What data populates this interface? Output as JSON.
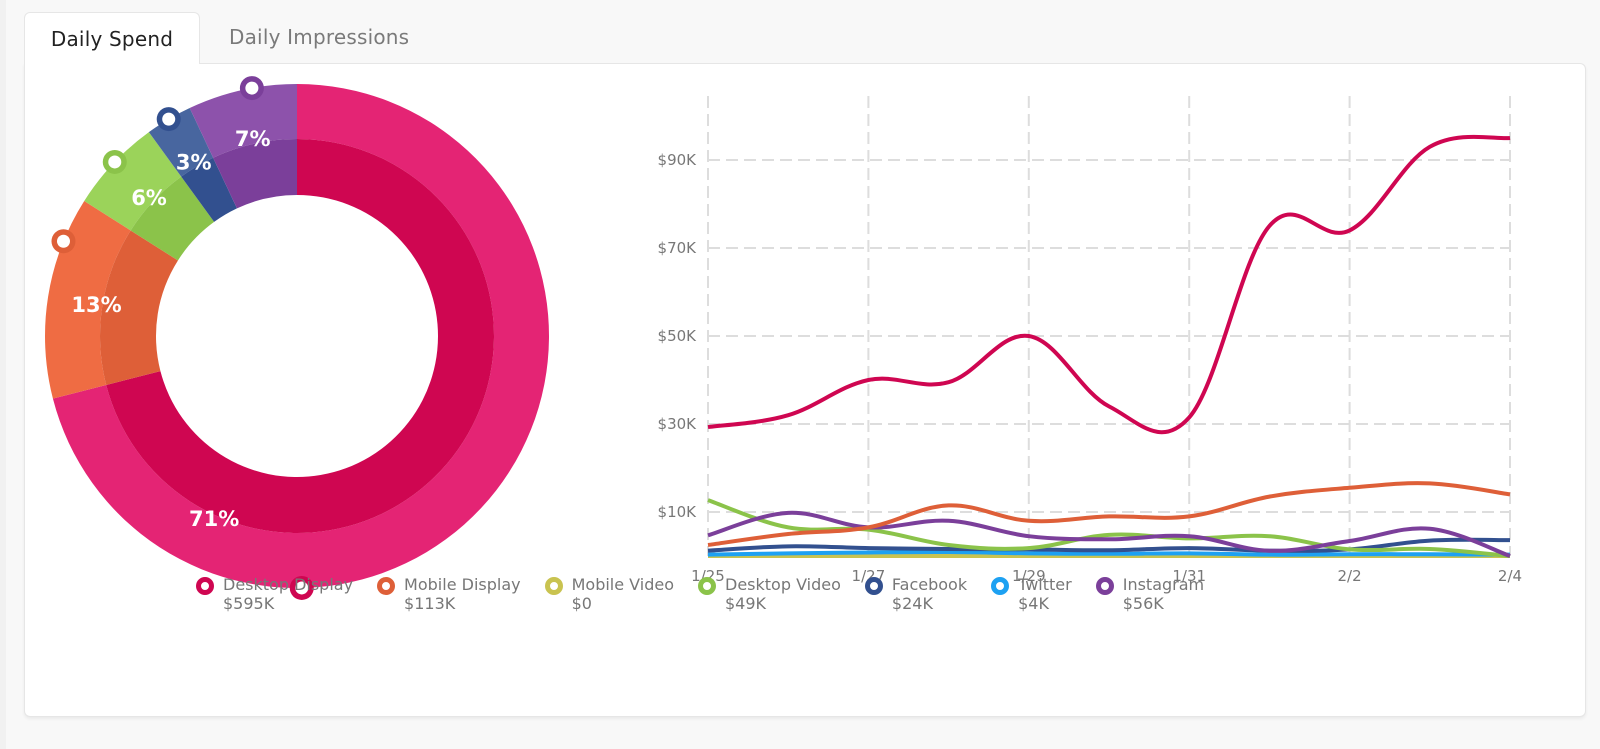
{
  "tabs": [
    {
      "label": "Daily Spend",
      "active": true
    },
    {
      "label": "Daily Impressions",
      "active": false
    }
  ],
  "colors": {
    "desktop_display": "#cf0651",
    "desktop_display_outer": "#e42474",
    "mobile_display": "#de5f38",
    "mobile_display_outer": "#ef6c43",
    "mobile_video": "#c9c350",
    "desktop_video": "#8bc34a",
    "desktop_video_outer": "#9bd35a",
    "facebook": "#32508f",
    "facebook_outer": "#48669f",
    "twitter": "#1da1f2",
    "instagram": "#7b3f9a",
    "instagram_outer": "#8d52ab",
    "grid": "#dddddd",
    "axis_text": "#777777"
  },
  "chart_data": [
    {
      "type": "pie",
      "variant": "donut",
      "title": "",
      "start_angle": "12 o'clock, clockwise",
      "slices": [
        {
          "name": "Desktop Display",
          "percent": 71,
          "label": "71%",
          "color_key": "desktop_display"
        },
        {
          "name": "Mobile Display",
          "percent": 13,
          "label": "13%",
          "color_key": "mobile_display"
        },
        {
          "name": "Desktop Video",
          "percent": 6,
          "label": "6%",
          "color_key": "desktop_video"
        },
        {
          "name": "Facebook",
          "percent": 3,
          "label": "3%",
          "color_key": "facebook"
        },
        {
          "name": "Instagram",
          "percent": 7,
          "label": "7%",
          "color_key": "instagram"
        }
      ]
    },
    {
      "type": "line",
      "title": "",
      "xlabel": "",
      "ylabel": "",
      "x": [
        "1/25",
        "1/26",
        "1/27",
        "1/28",
        "1/29",
        "1/30",
        "1/31",
        "2/1",
        "2/2",
        "2/3",
        "2/4"
      ],
      "x_tick_labels": [
        "1/25",
        "1/27",
        "1/29",
        "1/31",
        "2/2",
        "2/4"
      ],
      "y_tick_values": [
        10,
        30,
        50,
        70,
        90
      ],
      "y_tick_labels": [
        "$10K",
        "$30K",
        "$50K",
        "$70K",
        "$90K"
      ],
      "ylim": [
        0,
        100
      ],
      "y_units": "$K",
      "grid": true,
      "smooth": true,
      "series": [
        {
          "name": "Mobile Video",
          "color_key": "mobile_video",
          "values": [
            0,
            0,
            0,
            0,
            0,
            0,
            0,
            0,
            0,
            0,
            0
          ]
        },
        {
          "name": "Twitter",
          "color_key": "twitter",
          "values": [
            0.3,
            0.6,
            0.8,
            0.9,
            0.6,
            0.5,
            0.6,
            0.3,
            0.4,
            0.4,
            0.3
          ]
        },
        {
          "name": "Facebook",
          "color_key": "facebook",
          "values": [
            1.2,
            2.2,
            1.8,
            1.6,
            1.5,
            1.3,
            1.8,
            1.2,
            1.5,
            3.5,
            3.6
          ]
        },
        {
          "name": "Desktop Video",
          "color_key": "desktop_video",
          "values": [
            12.7,
            6.5,
            6,
            2.5,
            1.8,
            4.8,
            4,
            4.5,
            1.5,
            1.6,
            0
          ]
        },
        {
          "name": "Instagram",
          "color_key": "instagram",
          "values": [
            4.7,
            9.8,
            6.5,
            8,
            4.5,
            3.8,
            4.5,
            1.2,
            3.4,
            6.2,
            0
          ]
        },
        {
          "name": "Mobile Display",
          "color_key": "mobile_display",
          "values": [
            2.5,
            5,
            6.5,
            11.5,
            8,
            9,
            9,
            13.5,
            15.5,
            16.5,
            14
          ]
        },
        {
          "name": "Desktop Display",
          "color_key": "desktop_display",
          "values": [
            29.3,
            32,
            40,
            39.5,
            50,
            34,
            31.5,
            75,
            74,
            93,
            95
          ]
        }
      ]
    }
  ],
  "legend": [
    {
      "name": "Desktop Display",
      "value": "$595K",
      "color_key": "desktop_display"
    },
    {
      "name": "Mobile Display",
      "value": "$113K",
      "color_key": "mobile_display"
    },
    {
      "name": "Mobile Video",
      "value": "$0",
      "color_key": "mobile_video"
    },
    {
      "name": "Desktop Video",
      "value": "$49K",
      "color_key": "desktop_video"
    },
    {
      "name": "Facebook",
      "value": "$24K",
      "color_key": "facebook"
    },
    {
      "name": "Twitter",
      "value": "$4K",
      "color_key": "twitter"
    },
    {
      "name": "Instagram",
      "value": "$56K",
      "color_key": "instagram"
    }
  ]
}
